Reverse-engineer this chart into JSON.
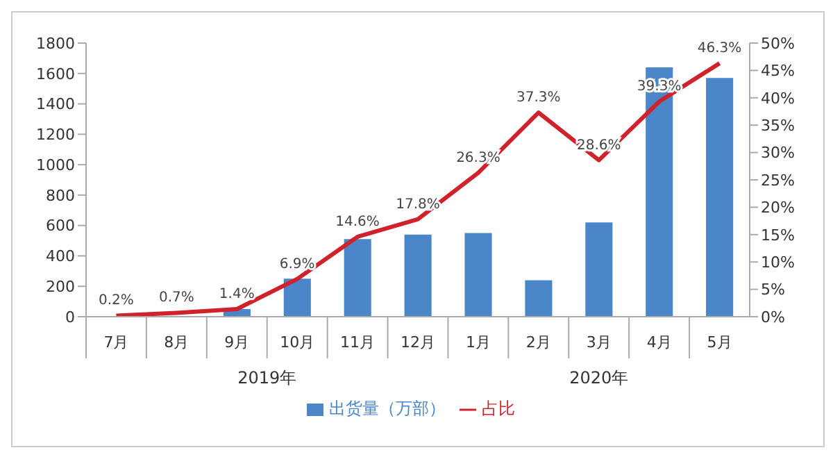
{
  "chart_data": {
    "type": "bar",
    "categories": [
      "7月",
      "8月",
      "9月",
      "10月",
      "11月",
      "12月",
      "1月",
      "2月",
      "3月",
      "4月",
      "5月"
    ],
    "series": [
      {
        "name": "出货量（万部）",
        "color": "#4a86c8",
        "values": [
          0,
          0,
          50,
          250,
          510,
          540,
          550,
          240,
          620,
          1640,
          1570
        ]
      },
      {
        "name": "占比",
        "type": "line",
        "axis": "y2",
        "color": "#d0222a",
        "values": [
          0.2,
          0.7,
          1.4,
          6.9,
          14.6,
          17.8,
          26.3,
          37.3,
          28.6,
          39.3,
          46.3
        ],
        "value_labels": [
          "0.2%",
          "0.7%",
          "1.4%",
          "6.9%",
          "14.6%",
          "17.8%",
          "26.3%",
          "37.3%",
          "28.6%",
          "39.3%",
          "46.3%"
        ]
      }
    ],
    "ylim": [
      0,
      1800
    ],
    "yticks": [
      0,
      200,
      400,
      600,
      800,
      1000,
      1200,
      1400,
      1600,
      1800
    ],
    "y2lim": [
      0,
      50
    ],
    "y2ticks": [
      {
        "value": 0,
        "label": "0%"
      },
      {
        "value": 5,
        "label": "5%"
      },
      {
        "value": 10,
        "label": "10%"
      },
      {
        "value": 15,
        "label": "15%"
      },
      {
        "value": 20,
        "label": "20%"
      },
      {
        "value": 25,
        "label": "25%"
      },
      {
        "value": 30,
        "label": "30%"
      },
      {
        "value": 35,
        "label": "35%"
      },
      {
        "value": 40,
        "label": "40%"
      },
      {
        "value": 45,
        "label": "45%"
      },
      {
        "value": 50,
        "label": "50%"
      }
    ],
    "annotations": [
      "2019年",
      "2020年"
    ],
    "grid": false,
    "legend": "bottom",
    "marker": "none",
    "line_style": "solid"
  }
}
